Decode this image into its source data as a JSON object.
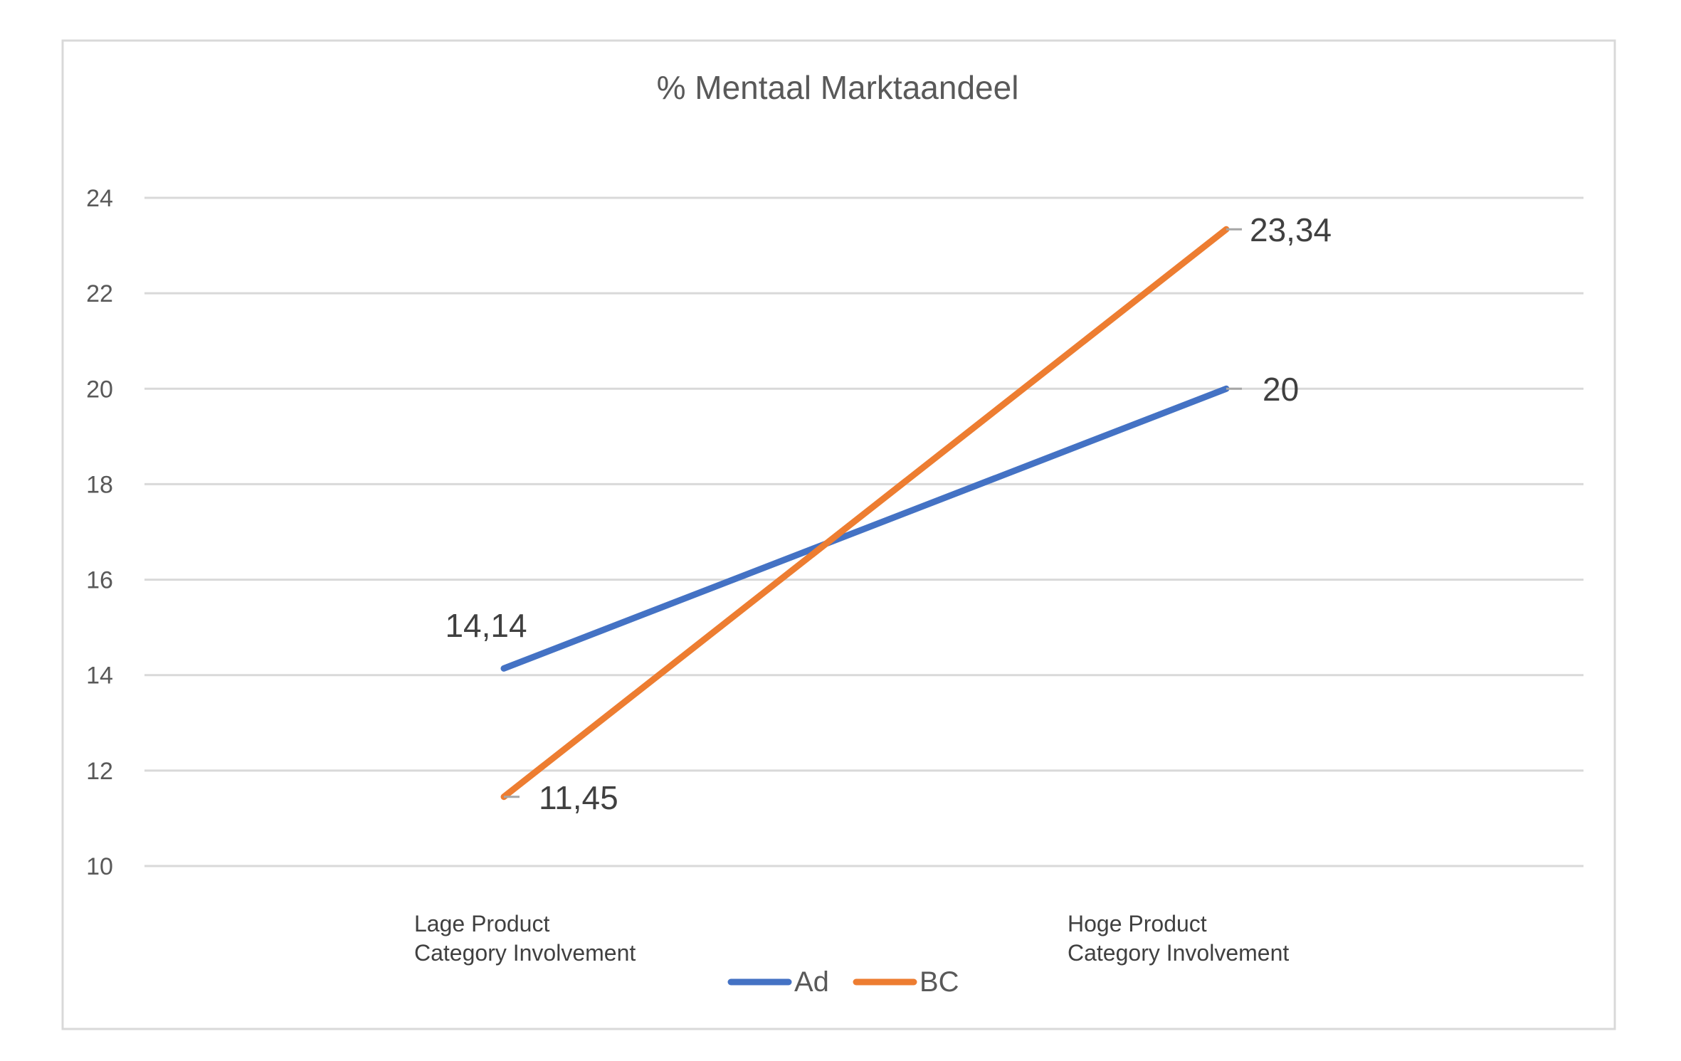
{
  "chart_data": {
    "type": "line",
    "title": "% Mentaal Marktaandeel",
    "xlabel": "",
    "ylabel": "",
    "categories": [
      [
        "Lage Product",
        "Category Involvement"
      ],
      [
        "Hoge Product",
        "Category Involvement"
      ]
    ],
    "ylim": [
      10,
      24
    ],
    "yticks": [
      "10",
      "12",
      "14",
      "16",
      "18",
      "20",
      "22",
      "24"
    ],
    "grid": true,
    "legend_position": "bottom",
    "series": [
      {
        "name": "Ad",
        "values": [
          14.14,
          20
        ],
        "labels": [
          "14,14",
          "20"
        ],
        "color": "#4472C4"
      },
      {
        "name": "BC",
        "values": [
          11.45,
          23.34
        ],
        "labels": [
          "11,45",
          "23,34"
        ],
        "color": "#ED7D31"
      }
    ]
  }
}
